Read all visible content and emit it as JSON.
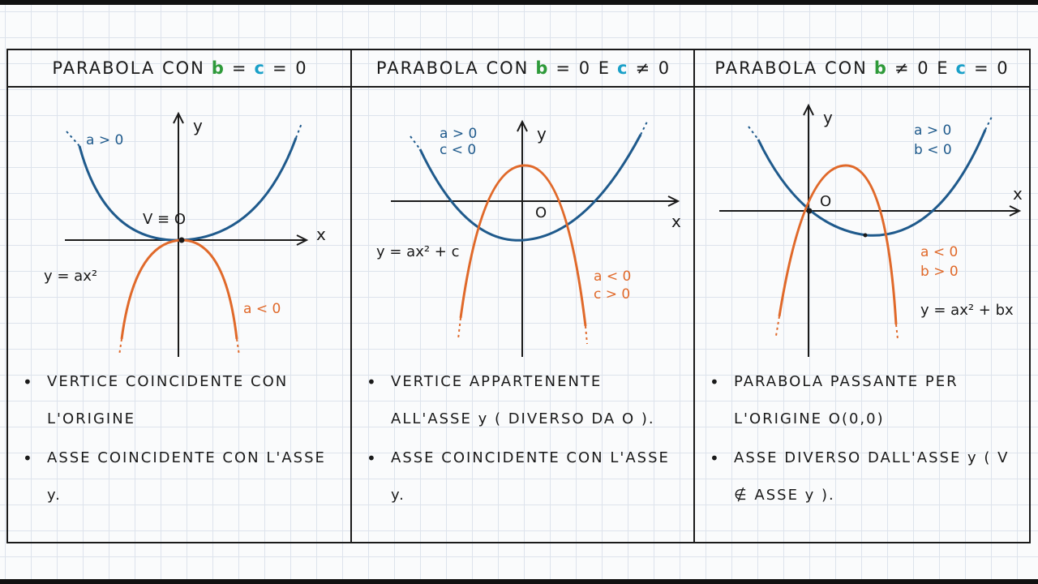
{
  "panels": [
    {
      "title": {
        "prefix": "PARABOLA CON",
        "b": "b",
        "op1": "=",
        "c": "c",
        "op2": "= 0"
      },
      "labels": {
        "a_pos": "a > 0",
        "a_neg": "a < 0",
        "vertex": "V ≡ O",
        "equation": "y = ax²",
        "x": "x",
        "y": "y"
      },
      "notes": [
        "VERTICE COINCIDENTE CON L'ORIGINE",
        "ASSE COINCIDENTE CON L'ASSE y."
      ]
    },
    {
      "title": {
        "prefix": "PARABOLA CON",
        "b": "b",
        "op1": "= 0 E",
        "c": "c",
        "op2": "≠ 0"
      },
      "labels": {
        "blue_a": "a > 0",
        "blue_c": "c < 0",
        "orange_a": "a < 0",
        "orange_c": "c > 0",
        "origin": "O",
        "equation": "y = ax² + c",
        "x": "x",
        "y": "y"
      },
      "notes": [
        "VERTICE APPARTENENTE ALL'ASSE y ( DIVERSO DA O ).",
        "ASSE COINCIDENTE CON L'ASSE y."
      ]
    },
    {
      "title": {
        "prefix": "PARABOLA CON",
        "b": "b",
        "op1": "≠ 0 E",
        "c": "c",
        "op2": "= 0"
      },
      "labels": {
        "blue_a": "a > 0",
        "blue_b": "b < 0",
        "orange_a": "a < 0",
        "orange_b": "b > 0",
        "origin": "O",
        "equation": "y = ax² + bx",
        "x": "x",
        "y": "y"
      },
      "notes": [
        "PARABOLA PASSANTE PER L'ORIGINE O(0,0)",
        "ASSE DIVERSO DALL'ASSE y ( V ∉ ASSE y )."
      ]
    }
  ],
  "colors": {
    "blue": "#1f5a8c",
    "orange": "#e0692a",
    "green": "#2e9a3a",
    "cyan": "#1aa0c8"
  }
}
